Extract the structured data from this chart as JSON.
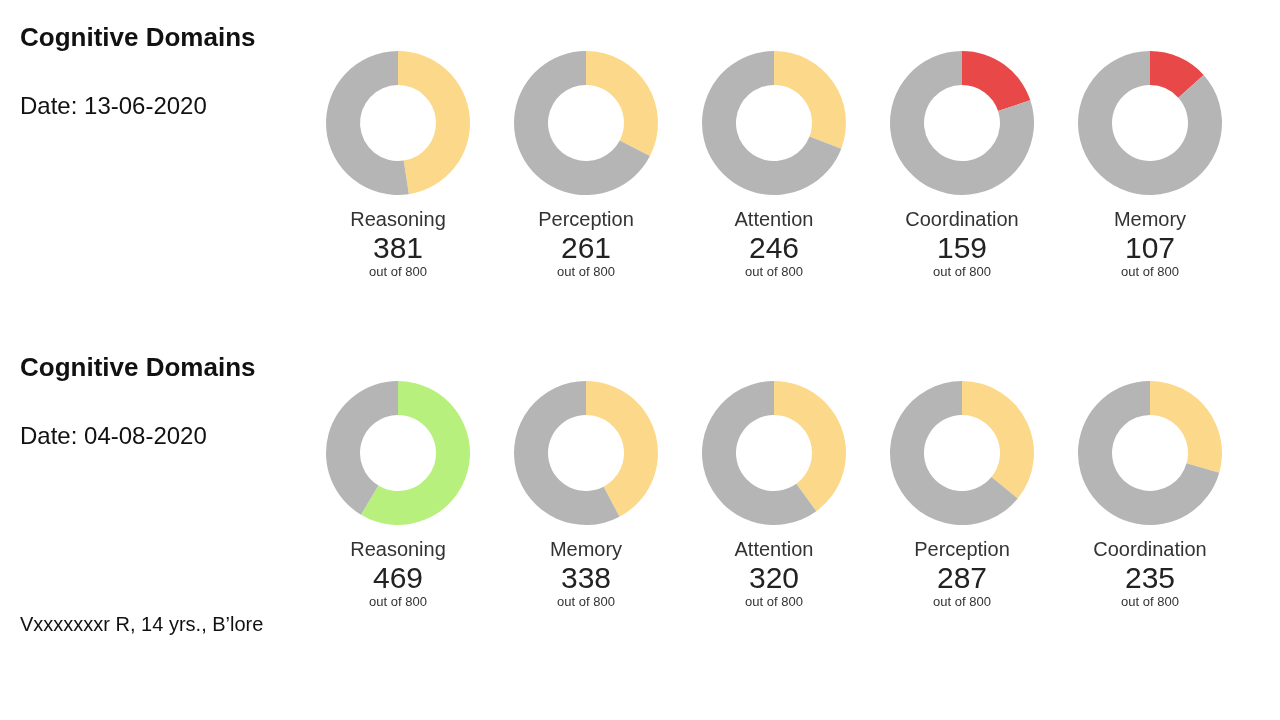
{
  "chart_data": [
    {
      "type": "other",
      "title": "Cognitive Domains",
      "subtitle": "Date: 13-06-2020"
    },
    {
      "type": "donut",
      "title": "Reasoning",
      "categories": [
        null,
        null
      ],
      "values": [
        47.6,
        52.4
      ],
      "colors": [
        "#fcd98a",
        "#b5b5b5"
      ],
      "annotations": [
        "381",
        "out of 800"
      ]
    },
    {
      "type": "donut",
      "title": "Perception",
      "categories": [
        null,
        null
      ],
      "values": [
        32.6,
        67.4
      ],
      "colors": [
        "#fcd98a",
        "#b5b5b5"
      ],
      "annotations": [
        "261",
        "out of 800"
      ]
    },
    {
      "type": "donut",
      "title": "Attention",
      "categories": [
        null,
        null
      ],
      "values": [
        30.8,
        69.2
      ],
      "colors": [
        "#fcd98a",
        "#b5b5b5"
      ],
      "annotations": [
        "246",
        "out of 800"
      ]
    },
    {
      "type": "donut",
      "title": "Coordination",
      "categories": [
        null,
        null
      ],
      "values": [
        19.9,
        80.1
      ],
      "colors": [
        "#e84848",
        "#b5b5b5"
      ],
      "annotations": [
        "159",
        "out of 800"
      ]
    },
    {
      "type": "donut",
      "title": "Memory",
      "categories": [
        null,
        null
      ],
      "values": [
        13.4,
        86.6
      ],
      "colors": [
        "#e84848",
        "#b5b5b5"
      ],
      "annotations": [
        "107",
        "out of 800"
      ]
    },
    {
      "type": "other",
      "title": "Cognitive Domains",
      "subtitle": "Date: 04-08-2020",
      "annotations": [
        "Vxxxxxxxr R, 14 yrs., B’lore"
      ]
    },
    {
      "type": "donut",
      "title": "Reasoning",
      "categories": [
        null,
        null
      ],
      "values": [
        58.6,
        41.4
      ],
      "colors": [
        "#b8f07e",
        "#b5b5b5"
      ],
      "annotations": [
        "469",
        "out of 800"
      ]
    },
    {
      "type": "donut",
      "title": "Memory",
      "categories": [
        null,
        null
      ],
      "values": [
        42.3,
        57.7
      ],
      "colors": [
        "#fcd98a",
        "#b5b5b5"
      ],
      "annotations": [
        "338",
        "out of 800"
      ]
    },
    {
      "type": "donut",
      "title": "Attention",
      "categories": [
        null,
        null
      ],
      "values": [
        40,
        60
      ],
      "colors": [
        "#fcd98a",
        "#b5b5b5"
      ],
      "annotations": [
        "320",
        "out of 800"
      ]
    },
    {
      "type": "donut",
      "title": "Perception",
      "categories": [
        null,
        null
      ],
      "values": [
        35.9,
        64.1
      ],
      "colors": [
        "#fcd98a",
        "#b5b5b5"
      ],
      "annotations": [
        "287",
        "out of 800"
      ]
    },
    {
      "type": "donut",
      "title": "Coordination",
      "categories": [
        null,
        null
      ],
      "values": [
        29.4,
        70.6
      ],
      "colors": [
        "#fcd98a",
        "#b5b5b5"
      ],
      "annotations": [
        "235",
        "out of 800"
      ]
    }
  ]
}
